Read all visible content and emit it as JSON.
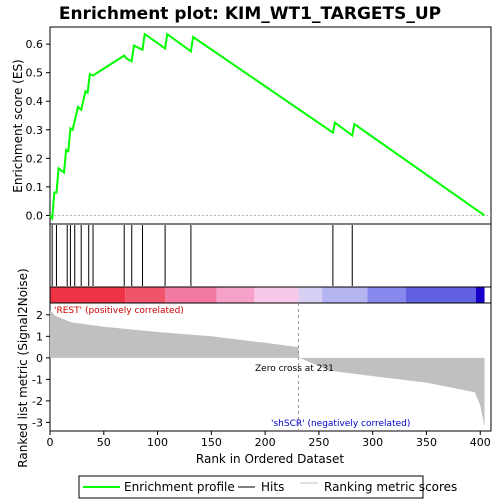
{
  "colors": {
    "es_line": "#00ff00",
    "hits": "#000000",
    "metric_bar": "#c0c0c0",
    "positive_label": "#cc0000",
    "negative_label": "#0000cc",
    "zero_line": "#b0b0b0"
  },
  "chart_data": {
    "type": "line",
    "title": "Enrichment plot: KIM_WT1_TARGETS_UP",
    "xlabel": "Rank in Ordered Dataset",
    "ylabel_es": "Enrichment score (ES)",
    "ylabel_metric": "Ranked list metric (Signal2Noise)",
    "xlim": [
      0,
      410
    ],
    "ylim_es": [
      -0.03,
      0.66
    ],
    "ylim_metric": [
      -3.4,
      2.55
    ],
    "x_ticks": [
      "0",
      "50",
      "100",
      "150",
      "200",
      "250",
      "300",
      "350",
      "400"
    ],
    "es_ticks": [
      "0.0",
      "0.1",
      "0.2",
      "0.3",
      "0.4",
      "0.5",
      "0.6"
    ],
    "metric_ticks": [
      "2",
      "1",
      "0",
      "-1",
      "-2",
      "-3"
    ],
    "series": [
      {
        "name": "Enrichment profile",
        "x": [
          0,
          2,
          4,
          6,
          8,
          13,
          15,
          17,
          19,
          21,
          26,
          29,
          33,
          35,
          37,
          40,
          69,
          71,
          76,
          78,
          86,
          88,
          107,
          109,
          131,
          133,
          263,
          265,
          281,
          283,
          404
        ],
        "y": [
          0.0,
          -0.01,
          0.08,
          0.08,
          0.165,
          0.15,
          0.23,
          0.225,
          0.305,
          0.3,
          0.38,
          0.37,
          0.435,
          0.43,
          0.495,
          0.49,
          0.56,
          0.55,
          0.54,
          0.595,
          0.58,
          0.635,
          0.585,
          0.635,
          0.575,
          0.625,
          0.29,
          0.325,
          0.28,
          0.32,
          0.0
        ]
      }
    ],
    "hits": [
      2,
      6,
      16,
      19,
      23,
      29,
      36,
      40,
      69,
      76,
      86,
      107,
      131,
      263,
      281
    ],
    "metric_profile": {
      "rank": [
        0,
        5,
        20,
        50,
        100,
        150,
        200,
        231,
        232,
        260,
        300,
        350,
        395,
        400,
        404
      ],
      "value": [
        2.2,
        1.95,
        1.65,
        1.45,
        1.2,
        1.0,
        0.7,
        0.5,
        0.0,
        -0.6,
        -0.85,
        -1.15,
        -1.6,
        -2.2,
        -3.2
      ]
    },
    "heatmap_segments": [
      {
        "to": 70,
        "color": "#ee3344"
      },
      {
        "to": 107,
        "color": "#f0546a"
      },
      {
        "to": 155,
        "color": "#f27aa0"
      },
      {
        "to": 190,
        "color": "#f6a2c8"
      },
      {
        "to": 231,
        "color": "#f8c8e8"
      },
      {
        "to": 253,
        "color": "#d8d0f4"
      },
      {
        "to": 295,
        "color": "#b4b4f0"
      },
      {
        "to": 331,
        "color": "#8888ee"
      },
      {
        "to": 396,
        "color": "#6060e0"
      },
      {
        "to": 404,
        "color": "#1800c8"
      }
    ],
    "annotations": {
      "positive": "'REST' (positively correlated)",
      "negative": "'shSCR' (negatively correlated)",
      "zero_cross": "Zero cross at 231",
      "zero_cross_rank": 231
    },
    "legend": {
      "placement": "bottom",
      "entries": [
        "Enrichment profile",
        "Hits",
        "Ranking metric scores"
      ]
    }
  }
}
